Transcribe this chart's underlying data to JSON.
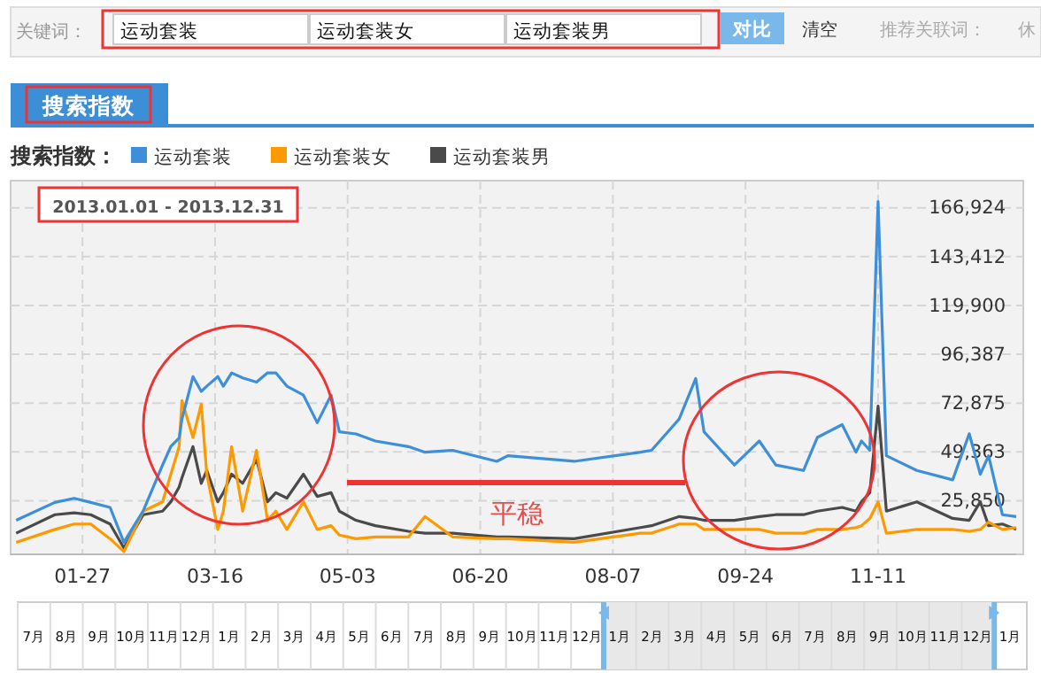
{
  "chart_data": {
    "type": "line",
    "title": "搜索指数",
    "legend_title": "搜索指数：",
    "legend": "top",
    "grid": true,
    "marker": "none",
    "line_style": "solid",
    "x": [
      "2013-01-03",
      "2013-01-17",
      "2013-01-24",
      "2013-01-30",
      "2013-02-06",
      "2013-02-11",
      "2013-02-18",
      "2013-02-25",
      "2013-02-28",
      "2013-03-03",
      "2013-03-04",
      "2013-03-08",
      "2013-03-11",
      "2013-03-13",
      "2013-03-17",
      "2013-03-19",
      "2013-03-22",
      "2013-03-26",
      "2013-03-31",
      "2013-04-04",
      "2013-04-07",
      "2013-04-11",
      "2013-04-17",
      "2013-04-22",
      "2013-04-27",
      "2013-04-30",
      "2013-05-06",
      "2013-05-13",
      "2013-05-25",
      "2013-05-31",
      "2013-06-10",
      "2013-06-26",
      "2013-06-30",
      "2013-07-24",
      "2013-08-17",
      "2013-08-21",
      "2013-08-31",
      "2013-09-06",
      "2013-09-09",
      "2013-09-20",
      "2013-09-29",
      "2013-10-05",
      "2013-10-15",
      "2013-10-20",
      "2013-10-29",
      "2013-11-03",
      "2013-11-05",
      "2013-11-08",
      "2013-11-11",
      "2013-11-14",
      "2013-11-25",
      "2013-12-08",
      "2013-12-14",
      "2013-12-18",
      "2013-12-21",
      "2013-12-26",
      "2013-12-31"
    ],
    "series": [
      {
        "name": "运动套装",
        "color": "#3d8fd9",
        "values": [
          16400,
          25000,
          27000,
          25000,
          22600,
          5800,
          21000,
          43000,
          52000,
          56000,
          65000,
          85600,
          78500,
          81000,
          85600,
          81000,
          87400,
          85000,
          83000,
          87400,
          87400,
          81000,
          76700,
          63400,
          76700,
          59000,
          58000,
          54600,
          51900,
          49200,
          50100,
          44800,
          47500,
          44800,
          49200,
          50100,
          65200,
          84700,
          59000,
          43000,
          54600,
          43000,
          40400,
          56300,
          62500,
          49200,
          54600,
          50100,
          169900,
          47500,
          40400,
          35900,
          58100,
          38600,
          47500,
          19100,
          18200
        ]
      },
      {
        "name": "运动套装女",
        "color": "#ff9900",
        "values": [
          5800,
          12000,
          14600,
          14600,
          7500,
          1300,
          20800,
          25300,
          38600,
          51900,
          74100,
          56300,
          72300,
          38600,
          12000,
          20800,
          51900,
          20800,
          50100,
          16400,
          20800,
          12000,
          25300,
          12000,
          13800,
          9300,
          7500,
          8400,
          8400,
          18200,
          8400,
          7500,
          7500,
          5800,
          10200,
          10200,
          14600,
          14600,
          12000,
          12000,
          12000,
          10200,
          10200,
          12000,
          12000,
          12900,
          13800,
          17300,
          25300,
          10200,
          12000,
          12000,
          11100,
          12000,
          15500,
          12000,
          12900
        ]
      },
      {
        "name": "运动套装男",
        "color": "#4a4a4a",
        "values": [
          10200,
          19100,
          20000,
          19100,
          14600,
          3100,
          19100,
          20800,
          25300,
          32400,
          36800,
          51900,
          34200,
          40400,
          25300,
          29700,
          38600,
          34200,
          45700,
          25300,
          29700,
          27100,
          38600,
          27900,
          29700,
          20800,
          16400,
          13800,
          11100,
          10200,
          10200,
          8400,
          8400,
          7500,
          12900,
          13800,
          18200,
          17300,
          16400,
          16400,
          18200,
          19100,
          19100,
          20800,
          22600,
          20800,
          25300,
          29700,
          71400,
          20800,
          25300,
          17300,
          16400,
          25300,
          13800,
          14600,
          12000
        ]
      }
    ],
    "xlim": [
      "2013-01-01",
      "2013-12-31"
    ],
    "xticks": [
      {
        "value": "2013-01-27",
        "label": "01-27"
      },
      {
        "value": "2013-03-16",
        "label": "03-16"
      },
      {
        "value": "2013-05-03",
        "label": "05-03"
      },
      {
        "value": "2013-06-20",
        "label": "06-20"
      },
      {
        "value": "2013-08-07",
        "label": "08-07"
      },
      {
        "value": "2013-09-24",
        "label": "09-24"
      },
      {
        "value": "2013-11-11",
        "label": "11-11"
      }
    ],
    "ylim": [
      0,
      180000
    ],
    "yticks": [
      {
        "value": 25850,
        "label": "25,850"
      },
      {
        "value": 49363,
        "label": "49,363"
      },
      {
        "value": 72875,
        "label": "72,875"
      },
      {
        "value": 96387,
        "label": "96,387"
      },
      {
        "value": 119900,
        "label": "119,900"
      },
      {
        "value": 143412,
        "label": "143,412"
      },
      {
        "value": 166924,
        "label": "166,924"
      }
    ],
    "annotations": [
      "2013.01.01 - 2013.12.31",
      "平稳",
      "关键词：",
      "对比",
      "清空",
      "推荐关联词：",
      "休",
      "7月",
      "8月",
      "9月",
      "10月",
      "11月",
      "12月",
      "1月",
      "2月",
      "3月",
      "4月",
      "5月",
      "6月",
      "7月",
      "8月",
      "9月",
      "10月",
      "11月",
      "12月",
      "1月",
      "2月",
      "3月",
      "4月",
      "5月",
      "6月",
      "7月",
      "8月",
      "9月",
      "10月",
      "11月",
      "12月",
      "1月"
    ]
  }
}
